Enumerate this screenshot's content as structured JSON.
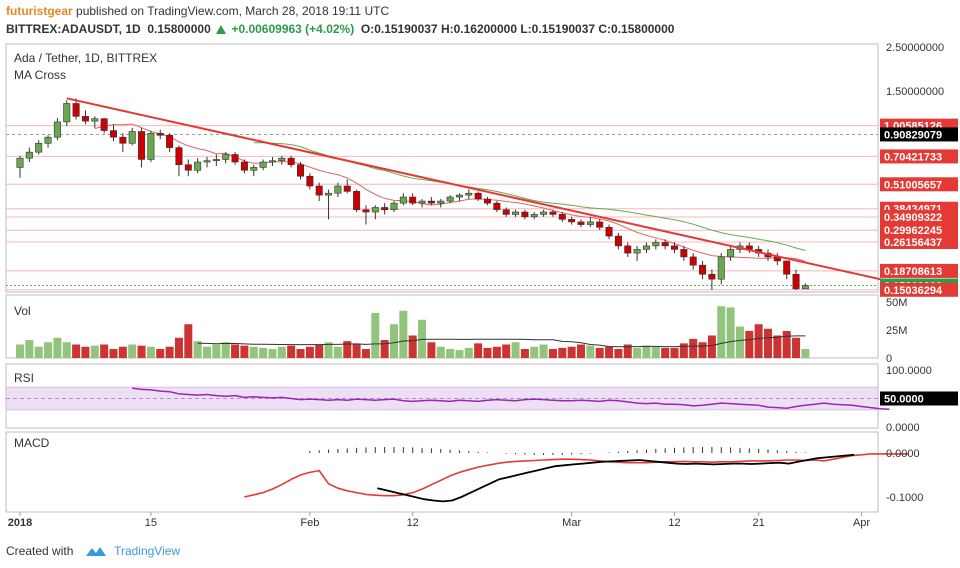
{
  "header": {
    "username": "futuristgear",
    "published_text": "published on TradingView.com, March 28, 2018 19:11 UTC",
    "symbol": "BITTREX:ADAUSDT, 1D",
    "last": "0.15800000",
    "change": "+0.00609963 (+4.02%)",
    "ohlc": "O:0.15190037 H:0.16200000 L:0.15190037 C:0.15800000"
  },
  "main_pane": {
    "title": "Ada / Tether, 1D, BITTREX",
    "indicator": "MA Cross",
    "price_ticks": [
      {
        "value": 2.5,
        "label": "2.50000000"
      },
      {
        "value": 1.5,
        "label": "1.50000000"
      }
    ],
    "price_labels": [
      {
        "value": 1.00585126,
        "label": "1.00585126",
        "color": "#e53935"
      },
      {
        "value": 0.90829079,
        "label": "0.90829079",
        "color": "#000000"
      },
      {
        "value": 0.70421733,
        "label": "0.70421733",
        "color": "#e53935"
      },
      {
        "value": 0.51005657,
        "label": "0.51005657",
        "color": "#e53935"
      },
      {
        "value": 0.38434971,
        "label": "0.38434971",
        "color": "#e53935"
      },
      {
        "value": 0.34909322,
        "label": "0.34909322",
        "color": "#e53935"
      },
      {
        "value": 0.29962245,
        "label": "0.29962245",
        "color": "#e53935"
      },
      {
        "value": 0.26156437,
        "label": "0.26156437",
        "color": "#e53935"
      },
      {
        "value": 0.18708613,
        "label": "0.18708613",
        "color": "#e53935"
      },
      {
        "value": 0.158,
        "label": "0.15800000",
        "color": "#2e9b49"
      },
      {
        "value": 0.15036294,
        "label": "0.15036294",
        "color": "#e53935"
      }
    ],
    "horizontal_levels": [
      1.00585126,
      0.70421733,
      0.51005657,
      0.38434971,
      0.34909322,
      0.29962245,
      0.26156437,
      0.18708613,
      0.15036294
    ],
    "dashed_level": 0.90829079
  },
  "vol_pane": {
    "title": "Vol",
    "ticks": [
      {
        "value": 50,
        "label": "50M"
      },
      {
        "value": 25,
        "label": "25M"
      },
      {
        "value": 0,
        "label": "0"
      }
    ]
  },
  "rsi_pane": {
    "title": "RSI",
    "ticks": [
      {
        "value": 100,
        "label": "100.0000"
      },
      {
        "value": 0,
        "label": "0.0000"
      }
    ],
    "marker": {
      "value": 50,
      "label": "50.0000"
    },
    "band": [
      30,
      70
    ]
  },
  "macd_pane": {
    "title": "MACD",
    "ticks": [
      {
        "value": 0,
        "label": "0.0000"
      },
      {
        "value": -0.1,
        "label": "-0.1000"
      }
    ]
  },
  "time_axis": [
    {
      "day": 0,
      "label": "2018"
    },
    {
      "day": 14,
      "label": "15"
    },
    {
      "day": 31,
      "label": "Feb"
    },
    {
      "day": 42,
      "label": "12"
    },
    {
      "day": 59,
      "label": "Mar"
    },
    {
      "day": 70,
      "label": "12"
    },
    {
      "day": 79,
      "label": "21"
    },
    {
      "day": 90,
      "label": "Apr"
    }
  ],
  "colors": {
    "up": "#6aa84f",
    "down": "#cc0000",
    "trendline": "#e53935",
    "ma_fast": "#e06666",
    "ma_slow": "#6aa84f",
    "rsi": "#9c27b0",
    "macd": "#000000",
    "signal": "#e53935"
  },
  "footer": {
    "created_with": "Created with",
    "brand": "TradingView"
  },
  "chart_data": {
    "type": "candlestick",
    "title": "Ada / Tether, 1D, BITTREX",
    "x_start": "2018-01-01",
    "x_unit": "day",
    "candles": [
      [
        0.62,
        0.71,
        0.55,
        0.69
      ],
      [
        0.69,
        0.78,
        0.66,
        0.74
      ],
      [
        0.74,
        0.85,
        0.72,
        0.82
      ],
      [
        0.82,
        0.9,
        0.78,
        0.88
      ],
      [
        0.88,
        1.1,
        0.85,
        1.05
      ],
      [
        1.05,
        1.35,
        1.0,
        1.3
      ],
      [
        1.3,
        1.38,
        1.08,
        1.12
      ],
      [
        1.12,
        1.2,
        1.02,
        1.06
      ],
      [
        1.06,
        1.12,
        0.98,
        1.09
      ],
      [
        1.09,
        1.1,
        0.92,
        0.95
      ],
      [
        0.95,
        1.02,
        0.84,
        0.88
      ],
      [
        0.88,
        0.92,
        0.74,
        0.82
      ],
      [
        0.82,
        0.98,
        0.8,
        0.94
      ],
      [
        0.94,
        0.98,
        0.62,
        0.68
      ],
      [
        0.68,
        0.95,
        0.66,
        0.92
      ],
      [
        0.92,
        0.96,
        0.86,
        0.9
      ],
      [
        0.9,
        0.92,
        0.74,
        0.78
      ],
      [
        0.78,
        0.8,
        0.56,
        0.64
      ],
      [
        0.64,
        0.68,
        0.56,
        0.6
      ],
      [
        0.6,
        0.69,
        0.58,
        0.66
      ],
      [
        0.66,
        0.7,
        0.62,
        0.67
      ],
      [
        0.67,
        0.72,
        0.63,
        0.68
      ],
      [
        0.68,
        0.74,
        0.65,
        0.72
      ],
      [
        0.72,
        0.74,
        0.64,
        0.66
      ],
      [
        0.66,
        0.68,
        0.58,
        0.6
      ],
      [
        0.6,
        0.64,
        0.56,
        0.62
      ],
      [
        0.62,
        0.68,
        0.6,
        0.66
      ],
      [
        0.66,
        0.7,
        0.63,
        0.67
      ],
      [
        0.67,
        0.71,
        0.64,
        0.69
      ],
      [
        0.69,
        0.71,
        0.62,
        0.64
      ],
      [
        0.64,
        0.66,
        0.54,
        0.56
      ],
      [
        0.56,
        0.58,
        0.48,
        0.5
      ],
      [
        0.5,
        0.52,
        0.42,
        0.45
      ],
      [
        0.45,
        0.48,
        0.34,
        0.46
      ],
      [
        0.46,
        0.52,
        0.44,
        0.5
      ],
      [
        0.5,
        0.54,
        0.46,
        0.47
      ],
      [
        0.47,
        0.48,
        0.37,
        0.38
      ],
      [
        0.38,
        0.4,
        0.32,
        0.37
      ],
      [
        0.37,
        0.4,
        0.34,
        0.39
      ],
      [
        0.39,
        0.41,
        0.36,
        0.38
      ],
      [
        0.38,
        0.42,
        0.37,
        0.41
      ],
      [
        0.41,
        0.46,
        0.4,
        0.44
      ],
      [
        0.44,
        0.46,
        0.4,
        0.41
      ],
      [
        0.41,
        0.43,
        0.39,
        0.42
      ],
      [
        0.42,
        0.44,
        0.4,
        0.41
      ],
      [
        0.41,
        0.43,
        0.39,
        0.42
      ],
      [
        0.42,
        0.45,
        0.41,
        0.44
      ],
      [
        0.44,
        0.46,
        0.42,
        0.45
      ],
      [
        0.45,
        0.48,
        0.43,
        0.46
      ],
      [
        0.46,
        0.47,
        0.42,
        0.43
      ],
      [
        0.43,
        0.44,
        0.4,
        0.41
      ],
      [
        0.41,
        0.42,
        0.37,
        0.38
      ],
      [
        0.38,
        0.39,
        0.35,
        0.36
      ],
      [
        0.36,
        0.38,
        0.35,
        0.37
      ],
      [
        0.37,
        0.38,
        0.34,
        0.35
      ],
      [
        0.35,
        0.37,
        0.34,
        0.36
      ],
      [
        0.36,
        0.38,
        0.35,
        0.37
      ],
      [
        0.37,
        0.38,
        0.35,
        0.36
      ],
      [
        0.36,
        0.37,
        0.33,
        0.34
      ],
      [
        0.34,
        0.35,
        0.32,
        0.33
      ],
      [
        0.33,
        0.34,
        0.31,
        0.32
      ],
      [
        0.32,
        0.35,
        0.31,
        0.33
      ],
      [
        0.33,
        0.34,
        0.3,
        0.31
      ],
      [
        0.31,
        0.32,
        0.27,
        0.28
      ],
      [
        0.28,
        0.29,
        0.24,
        0.25
      ],
      [
        0.25,
        0.26,
        0.22,
        0.23
      ],
      [
        0.23,
        0.25,
        0.21,
        0.24
      ],
      [
        0.24,
        0.26,
        0.23,
        0.25
      ],
      [
        0.25,
        0.27,
        0.24,
        0.26
      ],
      [
        0.26,
        0.27,
        0.24,
        0.25
      ],
      [
        0.25,
        0.26,
        0.23,
        0.24
      ],
      [
        0.24,
        0.25,
        0.21,
        0.22
      ],
      [
        0.22,
        0.23,
        0.19,
        0.2
      ],
      [
        0.2,
        0.21,
        0.17,
        0.18
      ],
      [
        0.18,
        0.19,
        0.15,
        0.17
      ],
      [
        0.17,
        0.23,
        0.16,
        0.22
      ],
      [
        0.22,
        0.25,
        0.21,
        0.24
      ],
      [
        0.24,
        0.26,
        0.23,
        0.25
      ],
      [
        0.25,
        0.26,
        0.23,
        0.24
      ],
      [
        0.24,
        0.25,
        0.22,
        0.23
      ],
      [
        0.23,
        0.24,
        0.21,
        0.22
      ],
      [
        0.22,
        0.23,
        0.2,
        0.21
      ],
      [
        0.21,
        0.21,
        0.17,
        0.18
      ],
      [
        0.18,
        0.19,
        0.15,
        0.152
      ],
      [
        0.152,
        0.162,
        0.152,
        0.158
      ]
    ],
    "volume_m": [
      12,
      16,
      10,
      14,
      18,
      14,
      12,
      10,
      11,
      12,
      8,
      10,
      12,
      11,
      10,
      8,
      10,
      18,
      30,
      15,
      10,
      12,
      14,
      12,
      11,
      10,
      9,
      8,
      10,
      11,
      8,
      10,
      12,
      14,
      10,
      15,
      12,
      8,
      40,
      16,
      30,
      42,
      20,
      34,
      14,
      10,
      8,
      7,
      9,
      13,
      9,
      10,
      12,
      14,
      8,
      10,
      12,
      8,
      9,
      10,
      12,
      11,
      9,
      10,
      8,
      12,
      9,
      11,
      10,
      9,
      9,
      13,
      17,
      14,
      20,
      46,
      45,
      28,
      24,
      30,
      26,
      20,
      24,
      18,
      8
    ],
    "rsi_series": [
      68,
      66,
      65,
      63,
      62,
      58,
      57,
      56,
      57,
      55,
      54,
      55,
      52,
      53,
      52,
      51,
      52,
      50,
      48,
      49,
      48,
      47,
      48,
      47,
      49,
      48,
      47,
      48,
      49,
      46,
      45,
      46,
      47,
      46,
      45,
      47,
      46,
      45,
      47,
      48,
      47,
      46,
      48,
      49,
      48,
      47,
      46,
      46,
      47,
      46,
      45,
      47,
      46,
      44,
      42,
      41,
      42,
      40,
      40,
      39,
      37,
      38,
      40,
      42,
      41,
      40,
      39,
      38,
      35,
      34,
      33,
      36,
      38,
      40,
      42,
      40,
      39,
      38,
      36,
      34,
      32,
      31
    ],
    "rsi_start_day": 4,
    "macd_line": [
      -0.08,
      -0.085,
      -0.09,
      -0.095,
      -0.1,
      -0.105,
      -0.108,
      -0.11,
      -0.108,
      -0.1,
      -0.09,
      -0.08,
      -0.07,
      -0.06,
      -0.055,
      -0.05,
      -0.045,
      -0.04,
      -0.035,
      -0.03,
      -0.028,
      -0.026,
      -0.024,
      -0.022,
      -0.02,
      -0.019,
      -0.018,
      -0.017,
      -0.016,
      -0.018,
      -0.02,
      -0.022,
      -0.024,
      -0.025,
      -0.024,
      -0.025,
      -0.026,
      -0.025,
      -0.024,
      -0.024,
      -0.025,
      -0.024,
      -0.023,
      -0.022,
      -0.024,
      -0.02,
      -0.016,
      -0.012,
      -0.01,
      -0.008,
      -0.006,
      -0.004
    ],
    "macd_start_day": 30,
    "signal_line": [
      -0.1,
      -0.095,
      -0.09,
      -0.082,
      -0.072,
      -0.06,
      -0.05,
      -0.044,
      -0.04,
      -0.07,
      -0.08,
      -0.086,
      -0.09,
      -0.094,
      -0.096,
      -0.097,
      -0.097,
      -0.095,
      -0.09,
      -0.082,
      -0.072,
      -0.062,
      -0.052,
      -0.044,
      -0.038,
      -0.032,
      -0.028,
      -0.024,
      -0.021,
      -0.019,
      -0.018,
      -0.017,
      -0.016,
      -0.015,
      -0.014,
      -0.014,
      -0.015,
      -0.016,
      -0.018,
      -0.02,
      -0.021,
      -0.022,
      -0.022,
      -0.022,
      -0.021,
      -0.02,
      -0.02,
      -0.019,
      -0.02,
      -0.02,
      -0.021,
      -0.02,
      -0.02,
      -0.019,
      -0.018,
      -0.018,
      -0.018,
      -0.017,
      -0.016,
      -0.016,
      -0.017,
      -0.016,
      -0.018,
      -0.014,
      -0.01,
      -0.006,
      -0.004,
      -0.002,
      -0.002,
      -0.002,
      -0.002,
      -0.002
    ],
    "signal_start_day": 16,
    "trendline": [
      [
        5,
        1.38
      ],
      [
        94,
        0.162
      ]
    ],
    "log_scale": true,
    "ylim": [
      0.14,
      2.6
    ]
  }
}
